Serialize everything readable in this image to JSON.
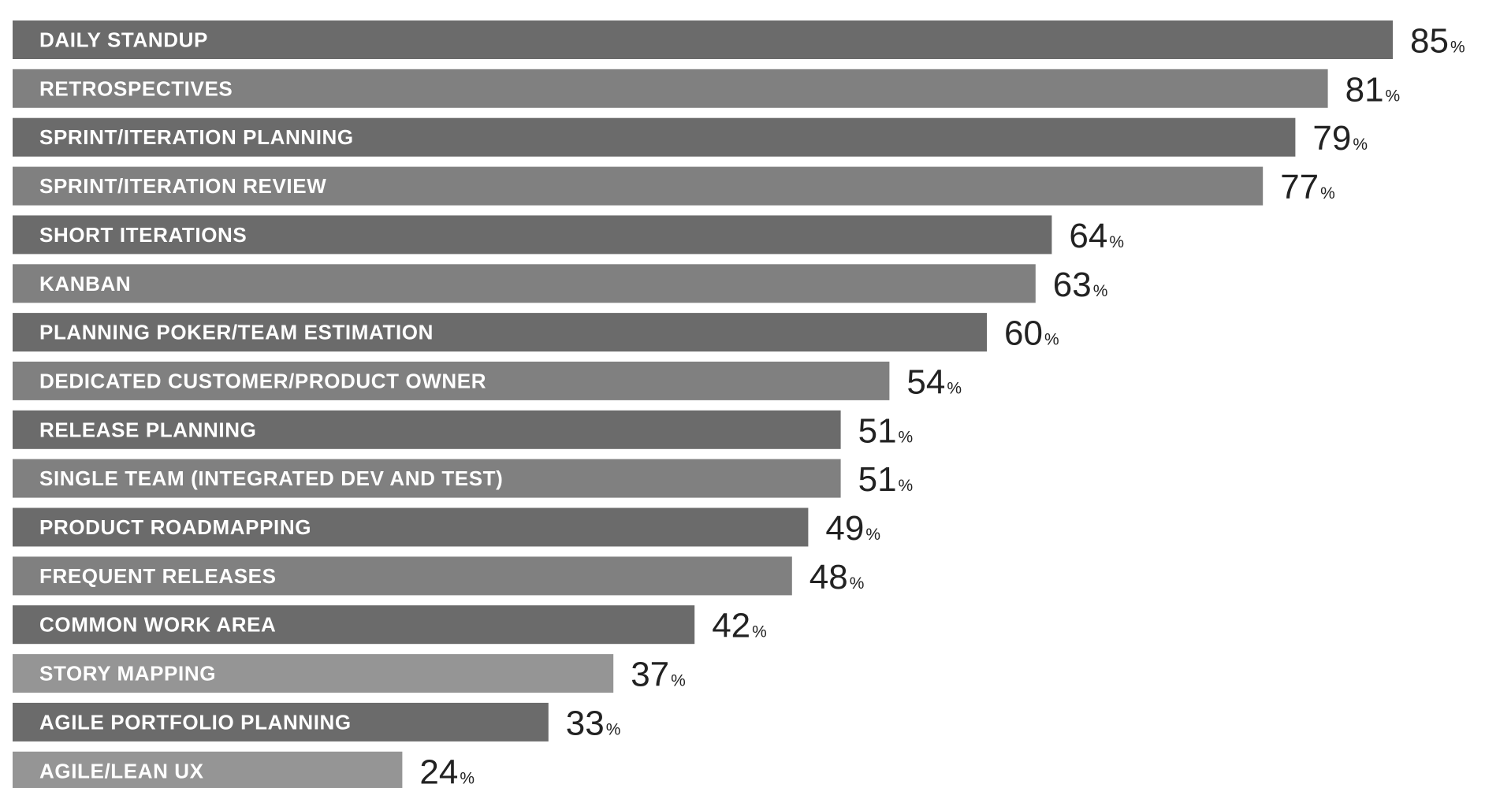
{
  "chart_data": {
    "type": "bar",
    "orientation": "horizontal",
    "title": "",
    "xlabel": "",
    "ylabel": "",
    "value_suffix": "%",
    "xlim": [
      0,
      100
    ],
    "grid": false,
    "legend": "none",
    "colors": {
      "dark": "#6b6b6b",
      "medium": "#808080",
      "light": "#959595",
      "label": "#ffffff",
      "value": "#222222"
    },
    "categories": [
      "DAILY STANDUP",
      "RETROSPECTIVES",
      "SPRINT/ITERATION PLANNING",
      "SPRINT/ITERATION REVIEW",
      "SHORT ITERATIONS",
      "KANBAN",
      "PLANNING POKER/TEAM ESTIMATION",
      "DEDICATED CUSTOMER/PRODUCT OWNER",
      "RELEASE PLANNING",
      "SINGLE TEAM (INTEGRATED DEV AND TEST)",
      "PRODUCT ROADMAPPING",
      "FREQUENT RELEASES",
      "COMMON WORK AREA",
      "STORY MAPPING",
      "AGILE PORTFOLIO PLANNING",
      "AGILE/LEAN UX"
    ],
    "values": [
      85,
      81,
      79,
      77,
      64,
      63,
      60,
      54,
      51,
      51,
      49,
      48,
      42,
      37,
      33,
      24
    ],
    "bar_shades": [
      "dark",
      "medium",
      "dark",
      "medium",
      "dark",
      "medium",
      "dark",
      "medium",
      "dark",
      "medium",
      "dark",
      "medium",
      "dark",
      "light",
      "dark",
      "light"
    ]
  }
}
